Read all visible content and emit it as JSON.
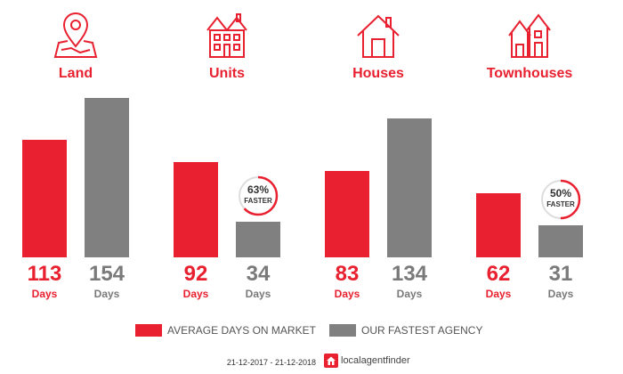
{
  "chart_data": {
    "type": "bar",
    "title": "",
    "xlabel": "",
    "ylabel": "",
    "ylim": [
      0,
      170
    ],
    "grid": false,
    "legend_placement": "bottom",
    "categories": [
      "Land",
      "Units",
      "Houses",
      "Townhouses"
    ],
    "icons": [
      "map-pin-icon",
      "units-building-icon",
      "house-icon",
      "townhouses-icon"
    ],
    "unit_label": "Days",
    "series": [
      {
        "name": "AVERAGE DAYS ON MARKET",
        "color": "#e8202f",
        "values": [
          113,
          92,
          83,
          62
        ]
      },
      {
        "name": "OUR FASTEST AGENCY",
        "color": "#808080",
        "values": [
          154,
          34,
          134,
          31
        ]
      }
    ],
    "badges": [
      {
        "category_index": 1,
        "percent": "63%",
        "label": "FASTER",
        "fraction": 0.63
      },
      {
        "category_index": 3,
        "percent": "50%",
        "label": "FASTER",
        "fraction": 0.5
      }
    ]
  },
  "footer": {
    "date_range": "21-12-2017 - 21-12-2018",
    "brand_name": "localagentfinder",
    "brand_icon": "house-logo-icon"
  },
  "colors": {
    "accent": "#e8202f",
    "agency": "#808080",
    "value_text_avg": "#e8202f",
    "value_text_agency": "#7a7a7a"
  }
}
